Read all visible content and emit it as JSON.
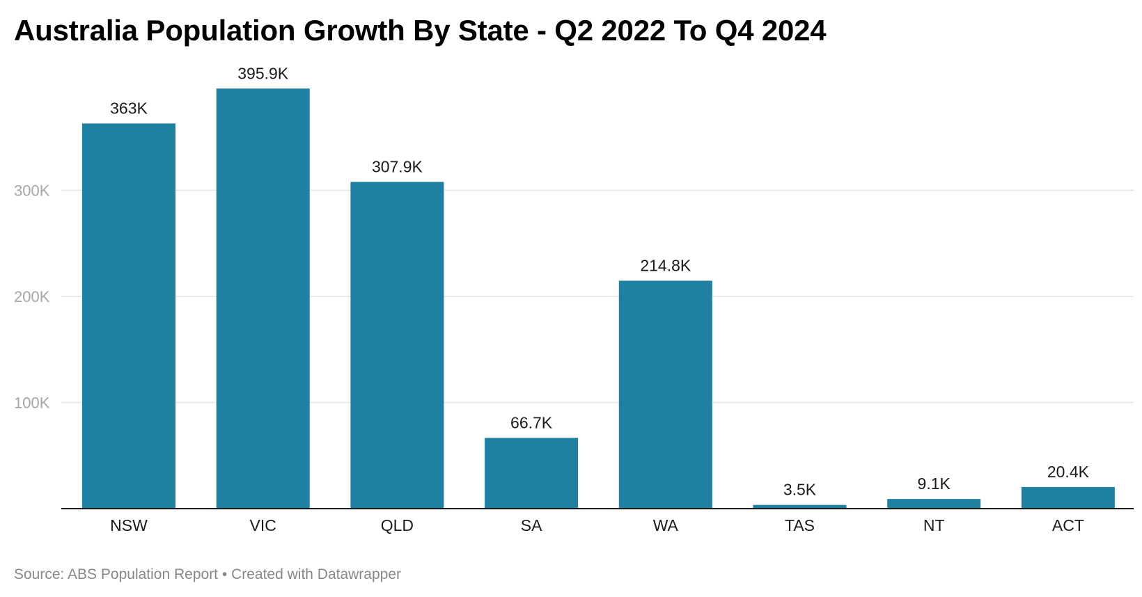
{
  "chart_data": {
    "type": "bar",
    "title": "Australia Population Growth By State - Q2 2022 To Q4 2024",
    "xlabel": "",
    "ylabel": "",
    "categories": [
      "NSW",
      "VIC",
      "QLD",
      "SA",
      "WA",
      "TAS",
      "NT",
      "ACT"
    ],
    "values": [
      363000,
      395900,
      307900,
      66700,
      214800,
      3500,
      9100,
      20400
    ],
    "data_labels": [
      "363K",
      "395.9K",
      "307.9K",
      "66.7K",
      "214.8K",
      "3.5K",
      "9.1K",
      "20.4K"
    ],
    "ylim": [
      0,
      400000
    ],
    "y_ticks": [
      {
        "value": 100000,
        "label": "100K"
      },
      {
        "value": 200000,
        "label": "200K"
      },
      {
        "value": 300000,
        "label": "300K"
      }
    ],
    "grid": true,
    "bar_color": "#1f81a2"
  },
  "footer": {
    "source": "Source: ABS Population Report",
    "separator": "•",
    "credit": "Created with Datawrapper"
  }
}
